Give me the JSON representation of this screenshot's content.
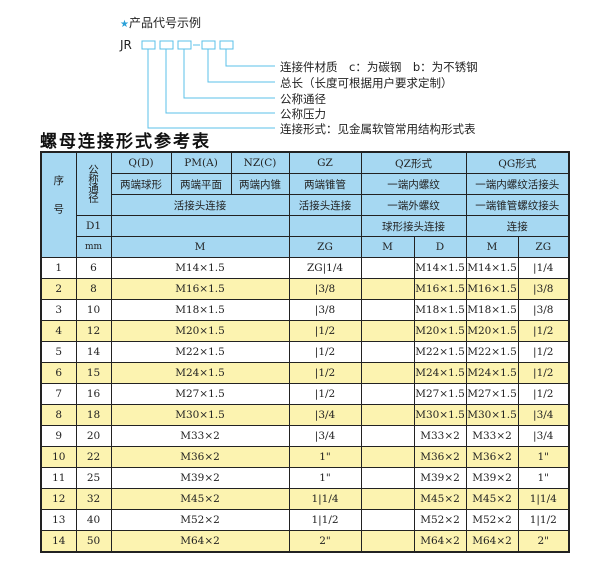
{
  "example": {
    "title": "产品代号示例",
    "prefix": "JR",
    "labels": [
      "连接件材质　c：为碳钢　b：为不锈钢",
      "总长（长度可根据用户要求定制）",
      "公称通径",
      "公称压力",
      "连接形式：见金属软管常用结构形式表"
    ]
  },
  "heading": "螺母连接形式参考表",
  "header": {
    "seq": "序号",
    "dn": "公称通径",
    "d1": "D1",
    "mm": "mm",
    "q": "Q(D)",
    "pm": "PM(A)",
    "nz": "NZ(C)",
    "gz": "GZ",
    "qz": "QZ形式",
    "qg": "QG形式",
    "q2": "两端球形",
    "pm2": "两端平面",
    "nz2": "两端内锥",
    "gz2": "两端锥管",
    "qz2": "一端内螺纹",
    "qg2": "一端内螺纹活接头",
    "conn": "活接头连接",
    "gz3": "活接头连接",
    "qz3": "一端外螺纹",
    "qg3": "一端锥管螺纹接头",
    "qz4": "球形接头连接",
    "qg4": "连接",
    "m": "M",
    "zg": "ZG",
    "qzm": "M",
    "qzd": "D",
    "qgm": "M",
    "qgzg": "ZG"
  },
  "rows": [
    [
      "1",
      "6",
      "M14×1.5",
      "ZG|1/4",
      "",
      "M14×1.5",
      "M14×1.5",
      "|1/4"
    ],
    [
      "2",
      "8",
      "M16×1.5",
      "|3/8",
      "",
      "M16×1.5",
      "M16×1.5",
      "|3/8"
    ],
    [
      "3",
      "10",
      "M18×1.5",
      "|3/8",
      "",
      "M18×1.5",
      "M18×1.5",
      "|3/8"
    ],
    [
      "4",
      "12",
      "M20×1.5",
      "|1/2",
      "",
      "M20×1.5",
      "M20×1.5",
      "|1/2"
    ],
    [
      "5",
      "14",
      "M22×1.5",
      "|1/2",
      "",
      "M22×1.5",
      "M22×1.5",
      "|1/2"
    ],
    [
      "6",
      "15",
      "M24×1.5",
      "|1/2",
      "",
      "M24×1.5",
      "M24×1.5",
      "|1/2"
    ],
    [
      "7",
      "16",
      "M27×1.5",
      "|1/2",
      "",
      "M27×1.5",
      "M27×1.5",
      "|1/2"
    ],
    [
      "8",
      "18",
      "M30×1.5",
      "|3/4",
      "",
      "M30×1.5",
      "M30×1.5",
      "|3/4"
    ],
    [
      "9",
      "20",
      "M33×2",
      "|3/4",
      "",
      "M33×2",
      "M33×2",
      "|3/4"
    ],
    [
      "10",
      "22",
      "M36×2",
      "1\"",
      "",
      "M36×2",
      "M36×2",
      "1\""
    ],
    [
      "11",
      "25",
      "M39×2",
      "1\"",
      "",
      "M39×2",
      "M39×2",
      "1\""
    ],
    [
      "12",
      "32",
      "M45×2",
      "1|1/4",
      "",
      "M45×2",
      "M45×2",
      "1|1/4"
    ],
    [
      "13",
      "40",
      "M52×2",
      "1|1/2",
      "",
      "M52×2",
      "M52×2",
      "1|1/2"
    ],
    [
      "14",
      "50",
      "M64×2",
      "2\"",
      "",
      "M64×2",
      "M64×2",
      "2\""
    ]
  ],
  "colors": {
    "header": "#a6d8f2",
    "stripe": "#fcf3b0",
    "diagram_line": "#5bc0e8"
  }
}
